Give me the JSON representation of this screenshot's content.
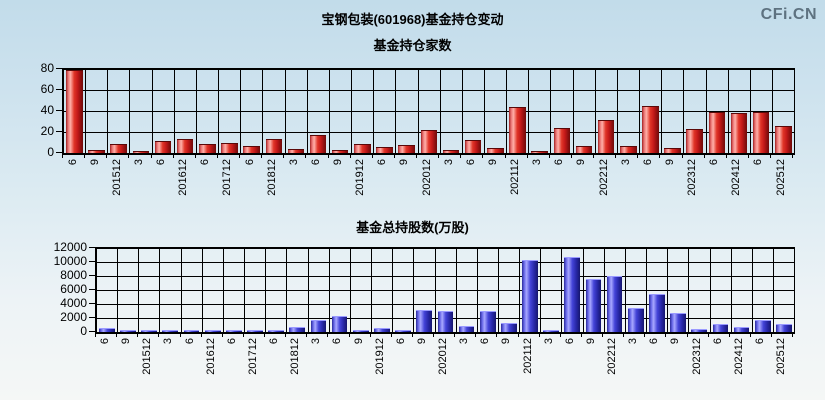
{
  "page": {
    "main_title": "宝钢包装(601968)基金持仓变动",
    "watermark": "CFi.CN"
  },
  "colors": {
    "red_bar": "#cc1919",
    "blue_bar": "#3a3ac8",
    "grid": "#000000",
    "watermark_text": "#5e7280",
    "background_top": "#c2dcea",
    "background_bottom": "#f5f7f6"
  },
  "chart_data": [
    {
      "type": "bar",
      "title": "基金持仓家数",
      "bar_color_theme": "red",
      "grid": true,
      "legend_position": "none",
      "x_tick_rotation": -90,
      "ylim": [
        0,
        80
      ],
      "yticks": [
        0,
        20,
        40,
        60,
        80
      ],
      "categories": [
        "6",
        "9",
        "201512",
        "3",
        "6",
        "201612",
        "6",
        "201712",
        "6",
        "201812",
        "3",
        "6",
        "9",
        "201912",
        "6",
        "9",
        "202012",
        "3",
        "6",
        "9",
        "202112",
        "3",
        "6",
        "9",
        "202212",
        "3",
        "6",
        "9",
        "202312",
        "6",
        "202412",
        "6",
        "202512"
      ],
      "values": [
        78,
        2,
        8,
        1,
        10,
        12,
        8,
        9,
        6,
        12,
        3,
        16,
        2,
        8,
        5,
        7,
        21,
        2,
        11,
        4,
        43,
        1,
        23,
        6,
        30,
        6,
        44,
        4,
        22,
        38,
        37,
        38,
        25
      ]
    },
    {
      "type": "bar",
      "title": "基金总持股数(万股)",
      "bar_color_theme": "blue",
      "grid": true,
      "legend_position": "none",
      "x_tick_rotation": -90,
      "ylim": [
        0,
        12000
      ],
      "yticks": [
        0,
        2000,
        4000,
        6000,
        8000,
        10000,
        12000
      ],
      "categories": [
        "6",
        "9",
        "201512",
        "3",
        "6",
        "201612",
        "6",
        "201712",
        "6",
        "201812",
        "3",
        "6",
        "9",
        "201912",
        "6",
        "9",
        "202012",
        "3",
        "6",
        "9",
        "202112",
        "3",
        "6",
        "9",
        "202212",
        "3",
        "6",
        "9",
        "202312",
        "6",
        "202412",
        "6",
        "202512"
      ],
      "values": [
        400,
        100,
        100,
        100,
        100,
        150,
        100,
        100,
        100,
        600,
        1500,
        2100,
        100,
        400,
        100,
        3000,
        2900,
        700,
        2900,
        1200,
        10200,
        150,
        10500,
        7400,
        7900,
        3300,
        5300,
        2500,
        300,
        1000,
        600,
        1500,
        1000
      ]
    }
  ]
}
